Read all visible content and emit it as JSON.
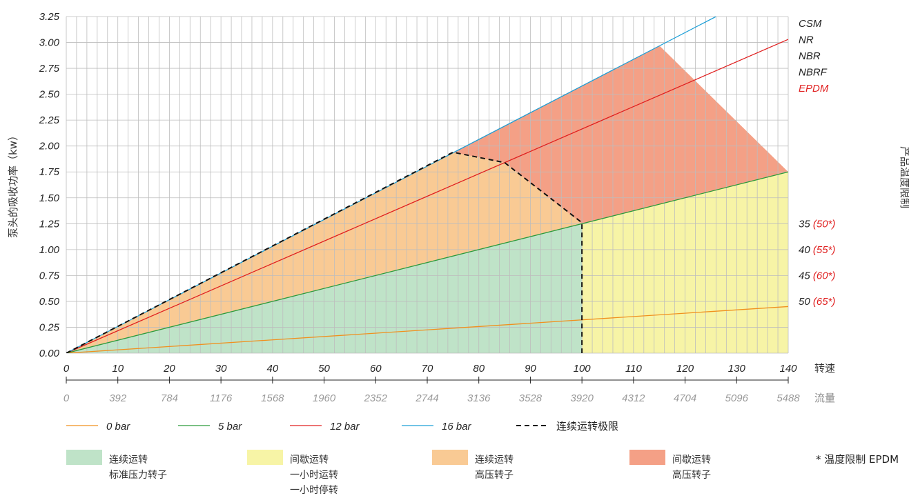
{
  "chart_data": {
    "type": "line",
    "ylabel": "泵头的吸收功率（kw）",
    "right_label": "产品温度限制",
    "y_ticks": [
      "0.00",
      "0.25",
      "0.50",
      "0.75",
      "1.00",
      "1.25",
      "1.50",
      "1.75",
      "2.00",
      "2.25",
      "2.50",
      "2.75",
      "3.00",
      "3.25"
    ],
    "ylim": [
      0,
      3.25
    ],
    "xlim": [
      0,
      140
    ],
    "x_axis_label": "转速",
    "x_ticks": [
      "0",
      "10",
      "20",
      "30",
      "40",
      "50",
      "60",
      "70",
      "80",
      "90",
      "100",
      "110",
      "120",
      "130",
      "140"
    ],
    "x2_axis_label": "流量",
    "x2_ticks": [
      "0",
      "392",
      "784",
      "1176",
      "1568",
      "1960",
      "2352",
      "2744",
      "3136",
      "3528",
      "3920",
      "4312",
      "4704",
      "5096",
      "5488"
    ],
    "materials": [
      {
        "text": "CSM",
        "color": "#222222"
      },
      {
        "text": "NR",
        "color": "#222222"
      },
      {
        "text": "NBR",
        "color": "#222222"
      },
      {
        "text": "NBRF",
        "color": "#222222"
      },
      {
        "text": "EPDM",
        "color": "#e02020"
      }
    ],
    "temp_limits": [
      {
        "y": 1.25,
        "val": "35",
        "epdm": "(50*)"
      },
      {
        "y": 1.0,
        "val": "40",
        "epdm": "(55*)"
      },
      {
        "y": 0.75,
        "val": "45",
        "epdm": "(60*)"
      },
      {
        "y": 0.5,
        "val": "50",
        "epdm": "(65*)"
      }
    ],
    "series": [
      {
        "name": "0 bar",
        "color": "#f0901e",
        "x": [
          0,
          140
        ],
        "y": [
          0,
          0.45
        ]
      },
      {
        "name": "5 bar",
        "color": "#2c9a3c",
        "x": [
          0,
          140
        ],
        "y": [
          0,
          1.75
        ]
      },
      {
        "name": "12 bar",
        "color": "#e02020",
        "x": [
          0,
          140
        ],
        "y": [
          0,
          3.03
        ]
      },
      {
        "name": "16 bar",
        "color": "#1ea0d8",
        "x": [
          0,
          126
        ],
        "y": [
          0,
          3.25
        ]
      }
    ],
    "limit_line": {
      "name": "连续运转极限",
      "x": [
        0,
        75,
        85,
        100,
        100
      ],
      "y": [
        0,
        1.94,
        1.84,
        1.26,
        0
      ]
    },
    "regions": [
      {
        "color": "#bfe3c8",
        "line1": "连续运转",
        "line2": "标准压力转子",
        "line3": "",
        "x": [
          0,
          100,
          100
        ],
        "y": [
          0,
          1.25,
          0
        ]
      },
      {
        "color": "#f7f4a6",
        "line1": "间歇运转",
        "line2": "一小时运转",
        "line3": "一小时停转",
        "x": [
          100,
          140,
          140,
          100
        ],
        "y": [
          1.25,
          1.75,
          0,
          0
        ]
      },
      {
        "color": "#f9ca94",
        "line1": "连续运转",
        "line2": "高压转子",
        "line3": "",
        "x": [
          0,
          75,
          85,
          100
        ],
        "y": [
          0,
          1.94,
          1.84,
          1.25
        ]
      },
      {
        "color": "#f4a086",
        "line1": "间歇运转",
        "line2": "高压转子",
        "line3": "",
        "x": [
          75,
          115,
          140,
          100,
          85
        ],
        "y": [
          1.94,
          2.97,
          1.75,
          1.25,
          1.84
        ]
      }
    ],
    "epdm_note": "* 温度限制 EPDM"
  }
}
